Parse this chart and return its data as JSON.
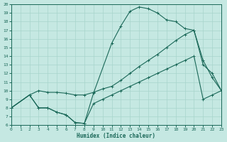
{
  "xlabel": "Humidex (Indice chaleur)",
  "bg_color": "#c5e8e2",
  "grid_color": "#a8d4cc",
  "line_color": "#1a6858",
  "xlim": [
    0,
    23
  ],
  "ylim": [
    6,
    20
  ],
  "xtick_labels": [
    "0",
    "1",
    "2",
    "3",
    "4",
    "5",
    "6",
    "7",
    "8",
    "9",
    "10",
    "11",
    "12",
    "13",
    "14",
    "15",
    "16",
    "17",
    "18",
    "19",
    "20",
    "21",
    "22",
    "23"
  ],
  "xticks": [
    0,
    1,
    2,
    3,
    4,
    5,
    6,
    7,
    8,
    9,
    10,
    11,
    12,
    13,
    14,
    15,
    16,
    17,
    18,
    19,
    20,
    21,
    22,
    23
  ],
  "yticks": [
    6,
    7,
    8,
    9,
    10,
    11,
    12,
    13,
    14,
    15,
    16,
    17,
    18,
    19,
    20
  ],
  "curve_top_x": [
    0,
    2,
    3,
    4,
    5,
    6,
    7,
    8,
    9,
    11,
    12,
    13,
    14,
    15,
    16,
    17,
    18,
    19,
    20,
    21,
    22,
    23
  ],
  "curve_top_y": [
    8.0,
    9.5,
    8.0,
    8.0,
    7.5,
    7.2,
    6.3,
    6.2,
    9.7,
    15.5,
    17.5,
    19.2,
    19.7,
    19.5,
    19.0,
    18.2,
    18.0,
    17.2,
    17.0,
    13.5,
    11.5,
    10.0
  ],
  "curve_mid_x": [
    0,
    2,
    3,
    4,
    5,
    6,
    7,
    8,
    9,
    10,
    11,
    12,
    13,
    14,
    15,
    16,
    17,
    18,
    19,
    20,
    21,
    22,
    23
  ],
  "curve_mid_y": [
    8.0,
    9.5,
    10.0,
    9.8,
    9.8,
    9.7,
    9.5,
    9.5,
    9.8,
    10.2,
    10.5,
    11.2,
    12.0,
    12.8,
    13.5,
    14.2,
    15.0,
    15.8,
    16.5,
    17.0,
    13.0,
    12.0,
    10.0
  ],
  "curve_bot_x": [
    0,
    2,
    3,
    4,
    5,
    6,
    7,
    8,
    9,
    10,
    11,
    12,
    13,
    14,
    15,
    16,
    17,
    18,
    19,
    20,
    21,
    22,
    23
  ],
  "curve_bot_y": [
    8.0,
    9.5,
    8.0,
    8.0,
    7.5,
    7.2,
    6.3,
    6.2,
    8.5,
    9.0,
    9.5,
    10.0,
    10.5,
    11.0,
    11.5,
    12.0,
    12.5,
    13.0,
    13.5,
    14.0,
    9.0,
    9.5,
    10.0
  ]
}
